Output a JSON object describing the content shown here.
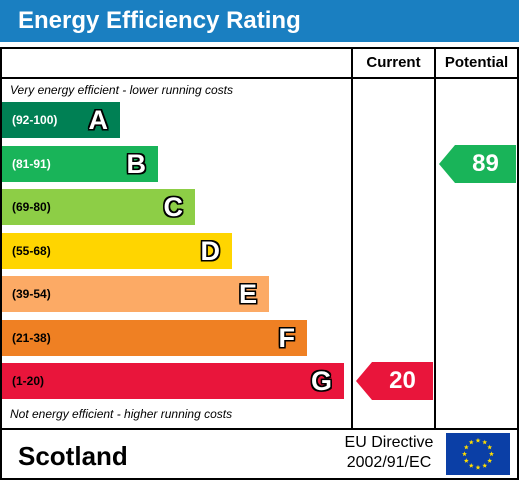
{
  "title": "Energy Efficiency Rating",
  "columns": {
    "current": "Current",
    "potential": "Potential"
  },
  "top_note": "Very energy efficient - lower running costs",
  "bottom_note": "Not energy efficient - higher running costs",
  "region": "Scotland",
  "directive": {
    "line1": "EU Directive",
    "line2": "2002/91/EC"
  },
  "colors": {
    "header": "#1a7fc1",
    "flag": "#0b3fa6",
    "stars": "#ffde00"
  },
  "chart_data": {
    "type": "bar",
    "title": "Energy Efficiency Rating",
    "bands": [
      {
        "letter": "A",
        "range": "(92-100)",
        "color": "#008054",
        "range_color": "#ffffff"
      },
      {
        "letter": "B",
        "range": "(81-91)",
        "color": "#19b459",
        "range_color": "#ffffff"
      },
      {
        "letter": "C",
        "range": "(69-80)",
        "color": "#8dce46",
        "range_color": "#000000"
      },
      {
        "letter": "D",
        "range": "(55-68)",
        "color": "#ffd500",
        "range_color": "#000000"
      },
      {
        "letter": "E",
        "range": "(39-54)",
        "color": "#fcaa65",
        "range_color": "#000000"
      },
      {
        "letter": "F",
        "range": "(21-38)",
        "color": "#ef8023",
        "range_color": "#000000"
      },
      {
        "letter": "G",
        "range": "(1-20)",
        "color": "#e9153b",
        "range_color": "#000000"
      }
    ],
    "current": {
      "value": 20,
      "band": "G",
      "color": "#e9153b"
    },
    "potential": {
      "value": 89,
      "band": "B",
      "color": "#19b459"
    }
  }
}
